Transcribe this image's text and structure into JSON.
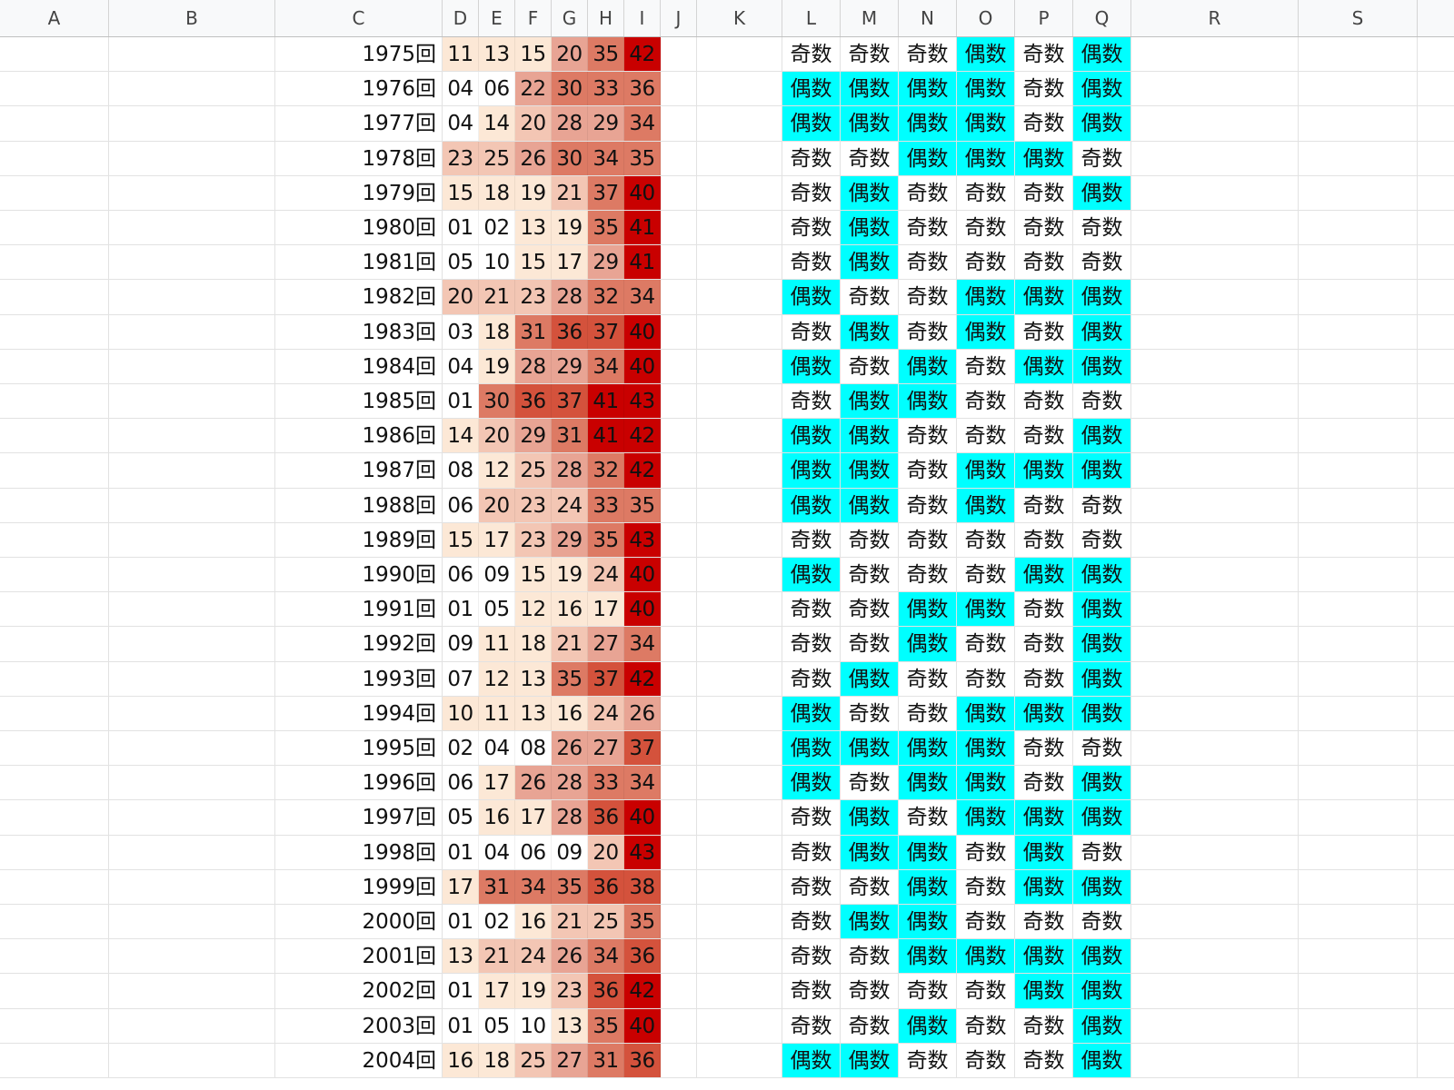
{
  "columns": [
    {
      "id": "A",
      "label": "A",
      "w": 120
    },
    {
      "id": "B",
      "label": "B",
      "w": 183
    },
    {
      "id": "C",
      "label": "C",
      "w": 184
    },
    {
      "id": "D",
      "label": "D",
      "w": 40
    },
    {
      "id": "E",
      "label": "E",
      "w": 40
    },
    {
      "id": "F",
      "label": "F",
      "w": 40
    },
    {
      "id": "G",
      "label": "G",
      "w": 40
    },
    {
      "id": "H",
      "label": "H",
      "w": 40
    },
    {
      "id": "I",
      "label": "I",
      "w": 40
    },
    {
      "id": "J",
      "label": "J",
      "w": 40
    },
    {
      "id": "K",
      "label": "K",
      "w": 94
    },
    {
      "id": "L",
      "label": "L",
      "w": 64
    },
    {
      "id": "M",
      "label": "M",
      "w": 64
    },
    {
      "id": "N",
      "label": "N",
      "w": 64
    },
    {
      "id": "O",
      "label": "O",
      "w": 64
    },
    {
      "id": "P",
      "label": "P",
      "w": 64
    },
    {
      "id": "Q",
      "label": "Q",
      "w": 64
    },
    {
      "id": "R",
      "label": "R",
      "w": 184
    },
    {
      "id": "S",
      "label": "S",
      "w": 131
    }
  ],
  "colors": {
    "heat": [
      "#ffffff",
      "#fce8d6",
      "#f3c6b4",
      "#e8a494",
      "#dd7a64",
      "#d4523c",
      "#c90000"
    ],
    "even_highlight": "#00ffff"
  },
  "rows": [
    {
      "label": "1975回",
      "nums": [
        "11",
        "13",
        "15",
        "20",
        "35",
        "42"
      ],
      "heat": [
        1,
        1,
        1,
        3,
        4,
        6
      ],
      "par": [
        "奇数",
        "奇数",
        "奇数",
        "偶数",
        "奇数",
        "偶数"
      ]
    },
    {
      "label": "1976回",
      "nums": [
        "04",
        "06",
        "22",
        "30",
        "33",
        "36"
      ],
      "heat": [
        0,
        0,
        3,
        4,
        4,
        4
      ],
      "par": [
        "偶数",
        "偶数",
        "偶数",
        "偶数",
        "奇数",
        "偶数"
      ]
    },
    {
      "label": "1977回",
      "nums": [
        "04",
        "14",
        "20",
        "28",
        "29",
        "34"
      ],
      "heat": [
        0,
        1,
        2,
        3,
        3,
        4
      ],
      "par": [
        "偶数",
        "偶数",
        "偶数",
        "偶数",
        "奇数",
        "偶数"
      ]
    },
    {
      "label": "1978回",
      "nums": [
        "23",
        "25",
        "26",
        "30",
        "34",
        "35"
      ],
      "heat": [
        2,
        2,
        3,
        4,
        4,
        4
      ],
      "par": [
        "奇数",
        "奇数",
        "偶数",
        "偶数",
        "偶数",
        "奇数"
      ]
    },
    {
      "label": "1979回",
      "nums": [
        "15",
        "18",
        "19",
        "21",
        "37",
        "40"
      ],
      "heat": [
        1,
        1,
        1,
        2,
        4,
        6
      ],
      "par": [
        "奇数",
        "偶数",
        "奇数",
        "奇数",
        "奇数",
        "偶数"
      ]
    },
    {
      "label": "1980回",
      "nums": [
        "01",
        "02",
        "13",
        "19",
        "35",
        "41"
      ],
      "heat": [
        0,
        0,
        1,
        1,
        4,
        6
      ],
      "par": [
        "奇数",
        "偶数",
        "奇数",
        "奇数",
        "奇数",
        "奇数"
      ]
    },
    {
      "label": "1981回",
      "nums": [
        "05",
        "10",
        "15",
        "17",
        "29",
        "41"
      ],
      "heat": [
        0,
        0,
        1,
        1,
        3,
        6
      ],
      "par": [
        "奇数",
        "偶数",
        "奇数",
        "奇数",
        "奇数",
        "奇数"
      ]
    },
    {
      "label": "1982回",
      "nums": [
        "20",
        "21",
        "23",
        "28",
        "32",
        "34"
      ],
      "heat": [
        2,
        2,
        2,
        3,
        4,
        4
      ],
      "par": [
        "偶数",
        "奇数",
        "奇数",
        "偶数",
        "偶数",
        "偶数"
      ]
    },
    {
      "label": "1983回",
      "nums": [
        "03",
        "18",
        "31",
        "36",
        "37",
        "40"
      ],
      "heat": [
        0,
        1,
        4,
        5,
        5,
        6
      ],
      "par": [
        "奇数",
        "偶数",
        "奇数",
        "偶数",
        "奇数",
        "偶数"
      ]
    },
    {
      "label": "1984回",
      "nums": [
        "04",
        "19",
        "28",
        "29",
        "34",
        "40"
      ],
      "heat": [
        0,
        1,
        3,
        3,
        4,
        6
      ],
      "par": [
        "偶数",
        "奇数",
        "偶数",
        "奇数",
        "偶数",
        "偶数"
      ]
    },
    {
      "label": "1985回",
      "nums": [
        "01",
        "30",
        "36",
        "37",
        "41",
        "43"
      ],
      "heat": [
        0,
        4,
        5,
        5,
        6,
        6
      ],
      "par": [
        "奇数",
        "偶数",
        "偶数",
        "奇数",
        "奇数",
        "奇数"
      ]
    },
    {
      "label": "1986回",
      "nums": [
        "14",
        "20",
        "29",
        "31",
        "41",
        "42"
      ],
      "heat": [
        1,
        2,
        3,
        4,
        6,
        6
      ],
      "par": [
        "偶数",
        "偶数",
        "奇数",
        "奇数",
        "奇数",
        "偶数"
      ]
    },
    {
      "label": "1987回",
      "nums": [
        "08",
        "12",
        "25",
        "28",
        "32",
        "42"
      ],
      "heat": [
        0,
        1,
        2,
        3,
        4,
        6
      ],
      "par": [
        "偶数",
        "偶数",
        "奇数",
        "偶数",
        "偶数",
        "偶数"
      ]
    },
    {
      "label": "1988回",
      "nums": [
        "06",
        "20",
        "23",
        "24",
        "33",
        "35"
      ],
      "heat": [
        0,
        2,
        2,
        2,
        4,
        4
      ],
      "par": [
        "偶数",
        "偶数",
        "奇数",
        "偶数",
        "奇数",
        "奇数"
      ]
    },
    {
      "label": "1989回",
      "nums": [
        "15",
        "17",
        "23",
        "29",
        "35",
        "43"
      ],
      "heat": [
        1,
        1,
        2,
        3,
        4,
        6
      ],
      "par": [
        "奇数",
        "奇数",
        "奇数",
        "奇数",
        "奇数",
        "奇数"
      ]
    },
    {
      "label": "1990回",
      "nums": [
        "06",
        "09",
        "15",
        "19",
        "24",
        "40"
      ],
      "heat": [
        0,
        0,
        1,
        1,
        2,
        6
      ],
      "par": [
        "偶数",
        "奇数",
        "奇数",
        "奇数",
        "偶数",
        "偶数"
      ]
    },
    {
      "label": "1991回",
      "nums": [
        "01",
        "05",
        "12",
        "16",
        "17",
        "40"
      ],
      "heat": [
        0,
        0,
        1,
        1,
        1,
        6
      ],
      "par": [
        "奇数",
        "奇数",
        "偶数",
        "偶数",
        "奇数",
        "偶数"
      ]
    },
    {
      "label": "1992回",
      "nums": [
        "09",
        "11",
        "18",
        "21",
        "27",
        "34"
      ],
      "heat": [
        0,
        1,
        1,
        2,
        3,
        4
      ],
      "par": [
        "奇数",
        "奇数",
        "偶数",
        "奇数",
        "奇数",
        "偶数"
      ]
    },
    {
      "label": "1993回",
      "nums": [
        "07",
        "12",
        "13",
        "35",
        "37",
        "42"
      ],
      "heat": [
        0,
        1,
        1,
        4,
        5,
        6
      ],
      "par": [
        "奇数",
        "偶数",
        "奇数",
        "奇数",
        "奇数",
        "偶数"
      ]
    },
    {
      "label": "1994回",
      "nums": [
        "10",
        "11",
        "13",
        "16",
        "24",
        "26"
      ],
      "heat": [
        1,
        1,
        1,
        1,
        2,
        3
      ],
      "par": [
        "偶数",
        "奇数",
        "奇数",
        "偶数",
        "偶数",
        "偶数"
      ]
    },
    {
      "label": "1995回",
      "nums": [
        "02",
        "04",
        "08",
        "26",
        "27",
        "37"
      ],
      "heat": [
        0,
        0,
        0,
        3,
        3,
        5
      ],
      "par": [
        "偶数",
        "偶数",
        "偶数",
        "偶数",
        "奇数",
        "奇数"
      ]
    },
    {
      "label": "1996回",
      "nums": [
        "06",
        "17",
        "26",
        "28",
        "33",
        "34"
      ],
      "heat": [
        0,
        1,
        3,
        3,
        4,
        4
      ],
      "par": [
        "偶数",
        "奇数",
        "偶数",
        "偶数",
        "奇数",
        "偶数"
      ]
    },
    {
      "label": "1997回",
      "nums": [
        "05",
        "16",
        "17",
        "28",
        "36",
        "40"
      ],
      "heat": [
        0,
        1,
        1,
        3,
        5,
        6
      ],
      "par": [
        "奇数",
        "偶数",
        "奇数",
        "偶数",
        "偶数",
        "偶数"
      ]
    },
    {
      "label": "1998回",
      "nums": [
        "01",
        "04",
        "06",
        "09",
        "20",
        "43"
      ],
      "heat": [
        0,
        0,
        0,
        0,
        2,
        6
      ],
      "par": [
        "奇数",
        "偶数",
        "偶数",
        "奇数",
        "偶数",
        "奇数"
      ]
    },
    {
      "label": "1999回",
      "nums": [
        "17",
        "31",
        "34",
        "35",
        "36",
        "38"
      ],
      "heat": [
        1,
        4,
        4,
        4,
        5,
        5
      ],
      "par": [
        "奇数",
        "奇数",
        "偶数",
        "奇数",
        "偶数",
        "偶数"
      ]
    },
    {
      "label": "2000回",
      "nums": [
        "01",
        "02",
        "16",
        "21",
        "25",
        "35"
      ],
      "heat": [
        0,
        0,
        1,
        2,
        2,
        4
      ],
      "par": [
        "奇数",
        "偶数",
        "偶数",
        "奇数",
        "奇数",
        "奇数"
      ]
    },
    {
      "label": "2001回",
      "nums": [
        "13",
        "21",
        "24",
        "26",
        "34",
        "36"
      ],
      "heat": [
        1,
        2,
        2,
        3,
        4,
        5
      ],
      "par": [
        "奇数",
        "奇数",
        "偶数",
        "偶数",
        "偶数",
        "偶数"
      ]
    },
    {
      "label": "2002回",
      "nums": [
        "01",
        "17",
        "19",
        "23",
        "36",
        "42"
      ],
      "heat": [
        0,
        1,
        1,
        2,
        5,
        6
      ],
      "par": [
        "奇数",
        "奇数",
        "奇数",
        "奇数",
        "偶数",
        "偶数"
      ]
    },
    {
      "label": "2003回",
      "nums": [
        "01",
        "05",
        "10",
        "13",
        "35",
        "40"
      ],
      "heat": [
        0,
        0,
        0,
        1,
        4,
        6
      ],
      "par": [
        "奇数",
        "奇数",
        "偶数",
        "奇数",
        "奇数",
        "偶数"
      ]
    },
    {
      "label": "2004回",
      "nums": [
        "16",
        "18",
        "25",
        "27",
        "31",
        "36"
      ],
      "heat": [
        1,
        1,
        2,
        3,
        4,
        5
      ],
      "par": [
        "偶数",
        "偶数",
        "奇数",
        "奇数",
        "奇数",
        "偶数"
      ]
    }
  ]
}
